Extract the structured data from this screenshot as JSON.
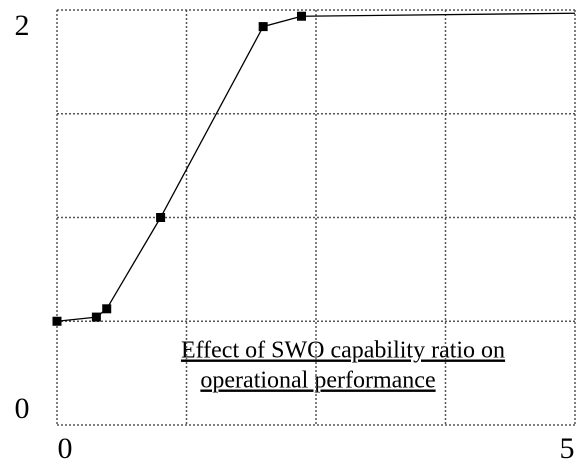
{
  "chart_data": {
    "type": "line",
    "annotation": [
      "Effect of SWO capability ratio on",
      "operational performance"
    ],
    "x": [
      0,
      0.38,
      0.48,
      1.0,
      1.99,
      2.36
    ],
    "series": [
      {
        "color": "#000000",
        "values": [
          0.5,
          0.52,
          0.56,
          1.0,
          1.92,
          1.97
        ]
      }
    ],
    "xlim": [
      0,
      5
    ],
    "ylim": [
      0,
      2
    ],
    "xticks": [
      0,
      5
    ],
    "yticks": [
      0,
      2
    ],
    "xgrid": [
      1.25,
      2.5,
      3.75
    ],
    "ygrid": [
      0.5,
      1,
      1.5
    ],
    "grid": true
  }
}
